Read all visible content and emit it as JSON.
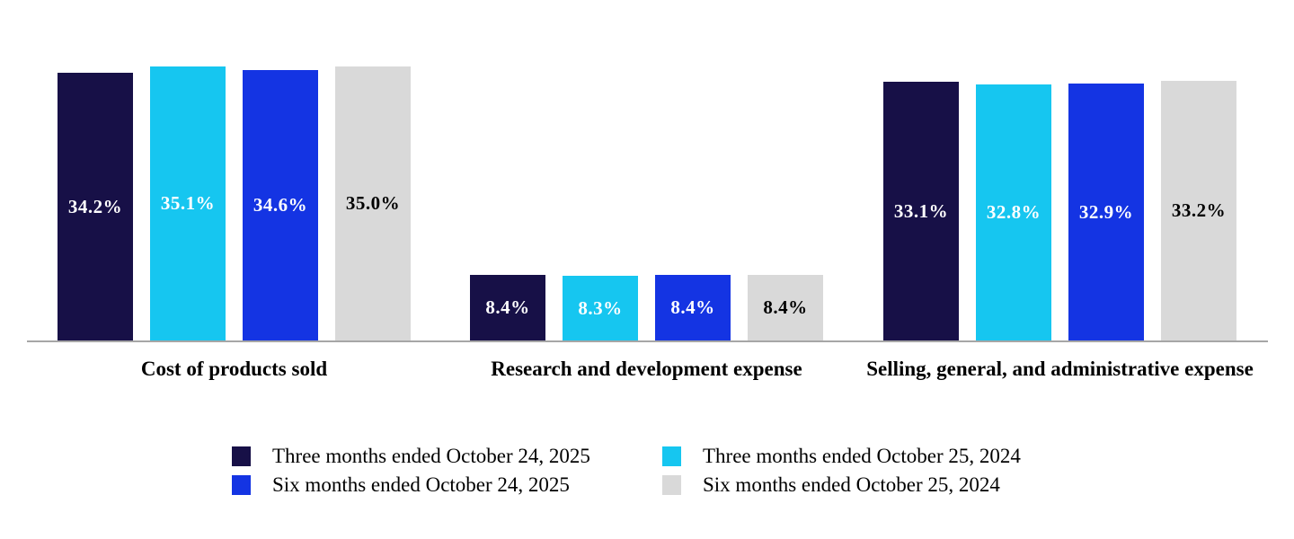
{
  "chart_data": {
    "type": "bar",
    "title": "",
    "xlabel": "",
    "ylabel": "",
    "grid": false,
    "legend_position": "bottom",
    "axis_line_color": "#a6a6a6",
    "ylim": [
      0,
      43.7
    ],
    "categories": [
      "Cost of products sold",
      "Research and development expense",
      "Selling, general, and administrative expense"
    ],
    "series": [
      {
        "name": "Three months ended October 24, 2025",
        "color": "#171047",
        "label_color": "#ffffff",
        "values": [
          34.2,
          8.4,
          33.1
        ],
        "labels": [
          "34.2%",
          "8.4%",
          "33.1%"
        ]
      },
      {
        "name": "Three months ended October 25, 2024",
        "color": "#16c6f0",
        "label_color": "#ffffff",
        "values": [
          35.1,
          8.3,
          32.8
        ],
        "labels": [
          "35.1%",
          "8.3%",
          "32.8%"
        ]
      },
      {
        "name": "Six months ended October 24, 2025",
        "color": "#1434e3",
        "label_color": "#ffffff",
        "values": [
          34.6,
          8.4,
          32.9
        ],
        "labels": [
          "34.6%",
          "8.4%",
          "32.9%"
        ]
      },
      {
        "name": "Six months ended October 25, 2024",
        "color": "#d9d9d9",
        "label_color": "#000000",
        "values": [
          35.0,
          8.4,
          33.2
        ],
        "labels": [
          "35.0%",
          "8.4%",
          "33.2%"
        ]
      }
    ]
  }
}
